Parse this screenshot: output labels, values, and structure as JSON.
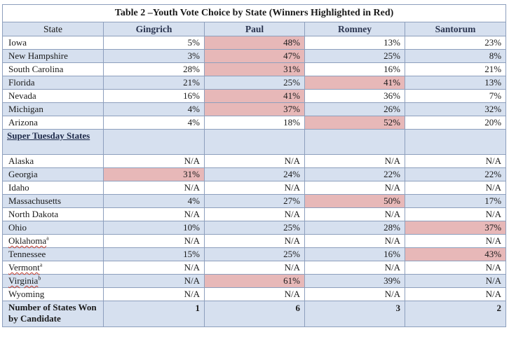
{
  "title": "Table 2 –Youth Vote Choice by State (Winners Highlighted in Red)",
  "columns": [
    "State",
    "Gingrich",
    "Paul",
    "Romney",
    "Santorum"
  ],
  "highlight_color": "#e7b8b8",
  "rows_early": [
    {
      "state": "Iowa",
      "sup": "",
      "values": [
        "5%",
        "48%",
        "13%",
        "23%"
      ],
      "winner": 1
    },
    {
      "state": "New Hampshire",
      "sup": "",
      "values": [
        "3%",
        "47%",
        "25%",
        "8%"
      ],
      "winner": 1
    },
    {
      "state": "South Carolina",
      "sup": "",
      "values": [
        "28%",
        "31%",
        "16%",
        "21%"
      ],
      "winner": 1
    },
    {
      "state": "Florida",
      "sup": "",
      "values": [
        "21%",
        "25%",
        "41%",
        "13%"
      ],
      "winner": 2
    },
    {
      "state": "Nevada",
      "sup": "",
      "values": [
        "16%",
        "41%",
        "36%",
        "7%"
      ],
      "winner": 1
    },
    {
      "state": "Michigan",
      "sup": "",
      "values": [
        "4%",
        "37%",
        "26%",
        "32%"
      ],
      "winner": 1
    },
    {
      "state": "Arizona",
      "sup": "",
      "values": [
        "4%",
        "18%",
        "52%",
        "20%"
      ],
      "winner": 2
    }
  ],
  "section_label": "Super Tuesday States",
  "rows_super": [
    {
      "state": "Alaska",
      "sup": "",
      "values": [
        "N/A",
        "N/A",
        "N/A",
        "N/A"
      ],
      "winner": -1
    },
    {
      "state": "Georgia",
      "sup": "",
      "values": [
        "31%",
        "24%",
        "22%",
        "22%"
      ],
      "winner": 0
    },
    {
      "state": "Idaho",
      "sup": "",
      "values": [
        "N/A",
        "N/A",
        "N/A",
        "N/A"
      ],
      "winner": -1
    },
    {
      "state": "Massachusetts",
      "sup": "",
      "values": [
        "4%",
        "27%",
        "50%",
        "17%"
      ],
      "winner": 2
    },
    {
      "state": "North Dakota",
      "sup": "",
      "values": [
        "N/A",
        "N/A",
        "N/A",
        "N/A"
      ],
      "winner": -1
    },
    {
      "state": "Ohio",
      "sup": "",
      "values": [
        "10%",
        "25%",
        "28%",
        "37%"
      ],
      "winner": 3
    },
    {
      "state": "Oklahoma",
      "sup": "a",
      "values": [
        "N/A",
        "N/A",
        "N/A",
        "N/A"
      ],
      "winner": -1
    },
    {
      "state": "Tennessee",
      "sup": "",
      "values": [
        "15%",
        "25%",
        "16%",
        "43%"
      ],
      "winner": 3
    },
    {
      "state": "Vermont",
      "sup": "a",
      "values": [
        "N/A",
        "N/A",
        "N/A",
        "N/A"
      ],
      "winner": -1
    },
    {
      "state": "Virginia",
      "sup": "b",
      "values": [
        "N/A",
        "61%",
        "39%",
        "N/A"
      ],
      "winner": 1
    },
    {
      "state": "Wyoming",
      "sup": "",
      "values": [
        "N/A",
        "N/A",
        "N/A",
        "N/A"
      ],
      "winner": -1
    }
  ],
  "footer": {
    "label": "Number of States Won by Candidate",
    "values": [
      "1",
      "6",
      "3",
      "2"
    ]
  }
}
